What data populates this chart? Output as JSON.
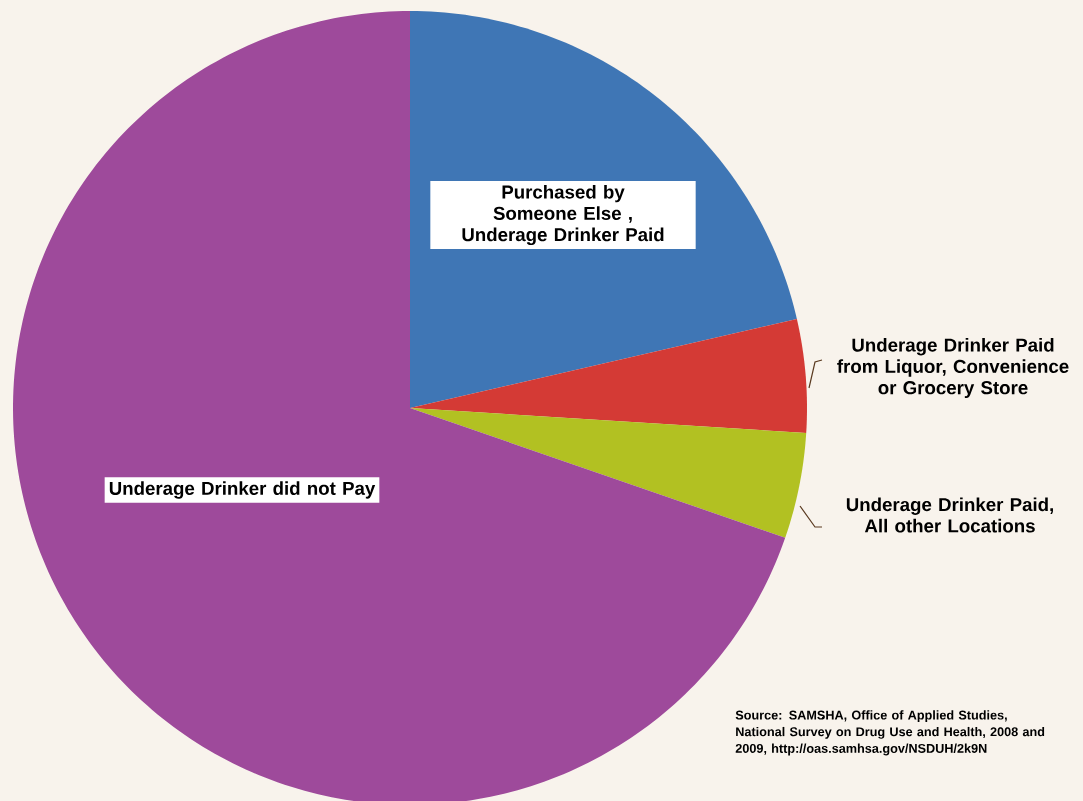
{
  "chart_data": {
    "type": "pie",
    "categories": [
      "Purchased by Someone Else , Underage Drinker Paid",
      "Underage Drinker Paid from Liquor, Convenience or Grocery Store",
      "Underage Drinker Paid, All other Locations",
      "Underage Drinker did not Pay"
    ],
    "values": [
      21.4,
      4.6,
      4.3,
      69.7
    ],
    "colors": [
      "#3f76b5",
      "#d43a35",
      "#b2c122",
      "#9e4a9b"
    ],
    "annotations": [
      "Source: SAMSHA, Office of Applied Studies, National Survey on Drug Use and Health, 2008 and 2009, http://oas.samhsa.gov/NSDUH/2k9N"
    ]
  }
}
